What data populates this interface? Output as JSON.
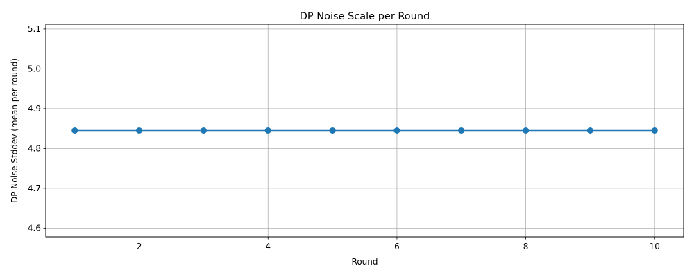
{
  "chart_data": {
    "type": "line",
    "title": "DP Noise Scale per Round",
    "xlabel": "Round",
    "ylabel": "DP Noise Stddev (mean per round)",
    "x": [
      1,
      2,
      3,
      4,
      5,
      6,
      7,
      8,
      9,
      10
    ],
    "series": [
      {
        "values": [
          4.845,
          4.845,
          4.845,
          4.845,
          4.845,
          4.845,
          4.845,
          4.845,
          4.845,
          4.845
        ],
        "color": "#1f77b4",
        "marker": "circle"
      }
    ],
    "xlim": [
      0.55,
      10.45
    ],
    "ylim": [
      4.578,
      5.112
    ],
    "xticks": [
      2,
      4,
      6,
      8,
      10
    ],
    "xtick_labels": [
      "2",
      "4",
      "6",
      "8",
      "10"
    ],
    "yticks": [
      4.6,
      4.7,
      4.8,
      4.9,
      5.0,
      5.1
    ],
    "ytick_labels": [
      "4.6",
      "4.7",
      "4.8",
      "4.9",
      "5.0",
      "5.1"
    ],
    "grid": true,
    "legend": false
  }
}
